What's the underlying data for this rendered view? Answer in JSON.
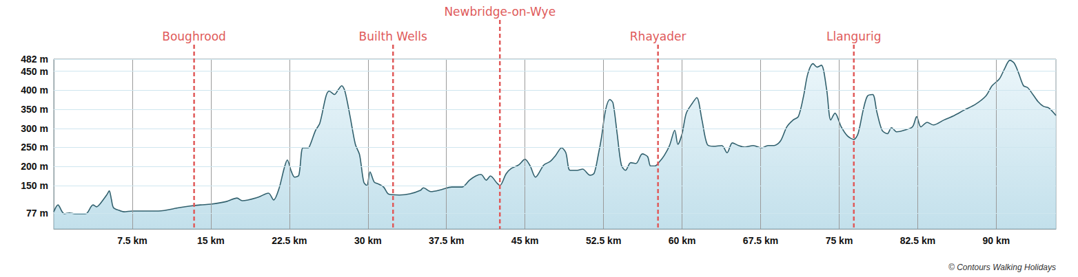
{
  "chart_data": {
    "type": "area",
    "color": "#31606d",
    "grid": true,
    "x": [
      0,
      0.4,
      0.8,
      1,
      1.5,
      2,
      3,
      3.2,
      3.75,
      4.1,
      4.4,
      5.1,
      5.3,
      5.5,
      5.7,
      6.2,
      6.7,
      7.5,
      10,
      12,
      13,
      14,
      15,
      16.5,
      17.5,
      18,
      19.5,
      20.5,
      21,
      21.5,
      22,
      22.3,
      22.7,
      23,
      23.4,
      23.8,
      24.3,
      24.5,
      25,
      25.4,
      26,
      26.3,
      26.8,
      27.2,
      27.5,
      27.8,
      28.3,
      28.8,
      29.2,
      29.6,
      29.9,
      30.2,
      30.6,
      31,
      31.5,
      32,
      33,
      34,
      35,
      35.3,
      36,
      37,
      38,
      39,
      39.7,
      40.3,
      40.8,
      41.3,
      41.7,
      42.3,
      42.6,
      43.2,
      43.7,
      44.4,
      45,
      45.5,
      46,
      46.8,
      47.4,
      47.9,
      48.5,
      48.9,
      49.3,
      50,
      50.5,
      51.2,
      51.6,
      52,
      52.3,
      52.7,
      53.1,
      53.4,
      53.8,
      54.2,
      54.6,
      55.1,
      55.6,
      56.2,
      56.7,
      57,
      57.4,
      57.8,
      58.3,
      58.8,
      59.3,
      59.6,
      60,
      60.4,
      61,
      61.4,
      61.9,
      62.4,
      63,
      63.8,
      64.3,
      64.8,
      65.4,
      66,
      66.8,
      67.6,
      68.2,
      68.8,
      69.4,
      70,
      70.6,
      71.1,
      71.6,
      72,
      72.5,
      72.9,
      73.3,
      73.8,
      74.2,
      74.6,
      75.2,
      75.8,
      76.4,
      76.8,
      77.3,
      77.7,
      78.2,
      78.6,
      79.1,
      79.6,
      80,
      80.5,
      81.2,
      82,
      82.4,
      82.8,
      83.4,
      84,
      85,
      86,
      87,
      88,
      89,
      89.6,
      90.3,
      90.8,
      91.3,
      91.7,
      92.1,
      92.6,
      93,
      93.5,
      94,
      94.5,
      95,
      95.7
    ],
    "values": [
      81,
      99,
      81,
      76,
      78,
      76,
      76,
      78,
      99,
      94,
      101,
      127,
      136,
      114,
      92,
      85,
      81,
      83,
      83,
      92,
      96,
      99,
      101,
      108,
      117,
      110,
      119,
      130,
      112,
      141,
      195,
      217,
      186,
      172,
      177,
      249,
      249,
      258,
      295,
      313,
      385,
      398,
      389,
      403,
      412,
      398,
      331,
      258,
      231,
      159,
      150,
      186,
      159,
      154,
      146,
      127,
      125,
      128,
      137,
      144,
      134,
      139,
      146,
      146,
      164,
      175,
      179,
      164,
      175,
      157,
      150,
      181,
      195,
      204,
      219,
      201,
      172,
      204,
      213,
      228,
      249,
      236,
      190,
      190,
      193,
      177,
      182,
      231,
      276,
      349,
      376,
      367,
      286,
      204,
      190,
      210,
      208,
      233,
      226,
      201,
      201,
      211,
      229,
      255,
      295,
      258,
      286,
      340,
      367,
      381,
      322,
      258,
      253,
      255,
      236,
      262,
      255,
      251,
      255,
      249,
      255,
      255,
      267,
      304,
      322,
      331,
      385,
      443,
      470,
      461,
      466,
      403,
      322,
      340,
      304,
      280,
      271,
      286,
      349,
      385,
      389,
      343,
      295,
      286,
      302,
      291,
      295,
      304,
      331,
      304,
      316,
      309,
      322,
      334,
      349,
      363,
      385,
      412,
      430,
      457,
      479,
      472,
      448,
      412,
      407,
      389,
      370,
      358,
      354,
      334
    ],
    "xlim": [
      0,
      95.7
    ],
    "xticks": [
      {
        "value": 7.5,
        "label": "7.5 km"
      },
      {
        "value": 15,
        "label": "15 km"
      },
      {
        "value": 22.5,
        "label": "22.5 km"
      },
      {
        "value": 30,
        "label": "30 km"
      },
      {
        "value": 37.5,
        "label": "37.5 km"
      },
      {
        "value": 45,
        "label": "45 km"
      },
      {
        "value": 52.5,
        "label": "52.5 km"
      },
      {
        "value": 60,
        "label": "60 km"
      },
      {
        "value": 67.5,
        "label": "67.5 km"
      },
      {
        "value": 75,
        "label": "75 km"
      },
      {
        "value": 82.5,
        "label": "82.5 km"
      },
      {
        "value": 90,
        "label": "90 km"
      }
    ],
    "ylim": [
      36,
      482
    ],
    "yticks": [
      {
        "value": 77,
        "label": "77 m"
      },
      {
        "value": 150,
        "label": "150 m"
      },
      {
        "value": 200,
        "label": "200 m"
      },
      {
        "value": 250,
        "label": "250 m"
      },
      {
        "value": 300,
        "label": "300 m"
      },
      {
        "value": 350,
        "label": "350 m"
      },
      {
        "value": 400,
        "label": "400 m"
      },
      {
        "value": 450,
        "label": "450 m"
      },
      {
        "value": 482,
        "label": "482 m"
      }
    ],
    "annotations": [
      {
        "text": "Boughrood",
        "x": 13.4,
        "color": "#e05a5a"
      },
      {
        "text": "Builth Wells",
        "x": 32.4,
        "color": "#e05a5a"
      },
      {
        "text": "Newbridge-on-Wye",
        "x": 42.6,
        "color": "#e05a5a"
      },
      {
        "text": "Rhayader",
        "x": 57.7,
        "color": "#e05a5a"
      },
      {
        "text": "Llangurig",
        "x": 76.4,
        "color": "#e05a5a"
      }
    ],
    "credit": "© Contours Walking Holidays"
  }
}
